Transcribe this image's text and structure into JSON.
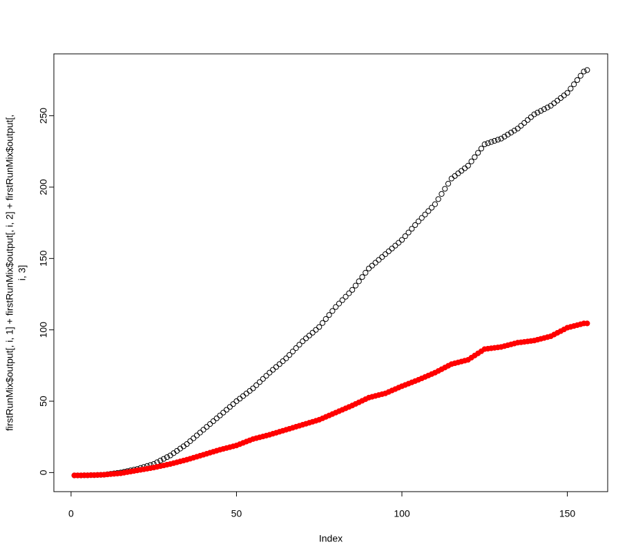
{
  "chart_data": {
    "type": "scatter",
    "x_label": "Index",
    "y_label": [
      "firstRunMix$output[, i, 1] + firstRunMix$output[, i, 2] + firstRunMix$output[,",
      "i, 3]"
    ],
    "x": [
      1,
      2,
      3,
      4,
      5,
      6,
      7,
      8,
      9,
      10,
      11,
      12,
      13,
      14,
      15,
      16,
      17,
      18,
      19,
      20,
      21,
      22,
      23,
      24,
      25,
      26,
      27,
      28,
      29,
      30,
      31,
      32,
      33,
      34,
      35,
      36,
      37,
      38,
      39,
      40,
      41,
      42,
      43,
      44,
      45,
      46,
      47,
      48,
      49,
      50,
      51,
      52,
      53,
      54,
      55,
      56,
      57,
      58,
      59,
      60,
      61,
      62,
      63,
      64,
      65,
      66,
      67,
      68,
      69,
      70,
      71,
      72,
      73,
      74,
      75,
      76,
      77,
      78,
      79,
      80,
      81,
      82,
      83,
      84,
      85,
      86,
      87,
      88,
      89,
      90,
      91,
      92,
      93,
      94,
      95,
      96,
      97,
      98,
      99,
      100,
      101,
      102,
      103,
      104,
      105,
      106,
      107,
      108,
      109,
      110,
      111,
      112,
      113,
      114,
      115,
      116,
      117,
      118,
      119,
      120,
      121,
      122,
      123,
      124,
      125,
      126,
      127,
      128,
      129,
      130,
      131,
      132,
      133,
      134,
      135,
      136,
      137,
      138,
      139,
      140,
      141,
      142,
      143,
      144,
      145,
      146,
      147,
      148,
      149,
      150,
      151,
      152,
      153,
      154,
      155,
      156
    ],
    "series": [
      {
        "color": "#000000",
        "filled": false,
        "values": [
          -2,
          -2,
          -2,
          -1.9,
          -1.9,
          -1.8,
          -1.8,
          -1.7,
          -1.6,
          -1.5,
          -1.2,
          -0.9,
          -0.6,
          -0.3,
          0,
          0.5,
          1,
          1.5,
          2,
          2.5,
          3.2,
          3.9,
          4.6,
          5.3,
          6,
          7.2,
          8.4,
          9.6,
          10.8,
          12,
          13.6,
          15.2,
          16.8,
          18.4,
          20,
          22,
          24,
          26,
          28,
          30,
          32,
          34,
          36,
          38,
          40,
          42,
          44,
          46,
          48,
          50,
          51.8,
          53.6,
          55.4,
          57.2,
          59,
          61.2,
          63.4,
          65.6,
          67.8,
          70,
          72,
          74,
          76,
          78,
          80,
          82.4,
          84.8,
          87.2,
          89.6,
          92,
          94,
          96,
          98,
          100,
          102,
          104.8,
          107.6,
          110.4,
          113.2,
          116,
          118.4,
          120.8,
          123.2,
          125.6,
          128,
          131,
          134,
          137,
          140,
          143,
          145,
          147,
          149,
          151,
          153,
          155,
          157,
          159,
          161,
          163,
          165.6,
          168.2,
          170.8,
          173.4,
          176,
          178.4,
          180.8,
          183.2,
          185.6,
          188,
          191.6,
          195.2,
          198.8,
          202.4,
          206,
          207.8,
          209.6,
          211.4,
          213.2,
          215,
          218,
          221,
          224,
          227,
          230,
          230.8,
          231.6,
          232.4,
          233.2,
          234,
          235.4,
          236.8,
          238.2,
          239.6,
          241,
          243,
          245,
          247,
          249,
          251,
          252.2,
          253.4,
          254.6,
          255.8,
          257,
          258.8,
          260.6,
          262.4,
          264.2,
          266,
          269,
          272,
          275,
          278,
          281,
          282
        ]
      },
      {
        "color": "#ff0000",
        "filled": true,
        "values": [
          -2,
          -2,
          -2,
          -1.9,
          -1.9,
          -1.8,
          -1.8,
          -1.7,
          -1.6,
          -1.5,
          -1.3,
          -1.1,
          -0.9,
          -0.7,
          -0.5,
          -0.1,
          0.3,
          0.7,
          1.1,
          1.5,
          1.9,
          2.3,
          2.7,
          3.1,
          3.5,
          4,
          4.5,
          5,
          5.5,
          6,
          6.6,
          7.2,
          7.8,
          8.4,
          9,
          9.7,
          10.4,
          11.1,
          11.8,
          12.5,
          13.2,
          13.9,
          14.6,
          15.3,
          16,
          16.6,
          17.2,
          17.8,
          18.4,
          19,
          19.9,
          20.8,
          21.7,
          22.6,
          23.5,
          24.1,
          24.7,
          25.3,
          25.9,
          26.5,
          27.2,
          27.9,
          28.6,
          29.3,
          30,
          30.7,
          31.4,
          32.1,
          32.8,
          33.5,
          34.2,
          34.9,
          35.6,
          36.3,
          37,
          38,
          39,
          40,
          41,
          42,
          43,
          44,
          45,
          46,
          47,
          48.1,
          49.2,
          50.3,
          51.4,
          52.5,
          53.1,
          53.7,
          54.3,
          54.9,
          55.5,
          56.5,
          57.5,
          58.5,
          59.5,
          60.5,
          61.4,
          62.3,
          63.2,
          64.1,
          65,
          66,
          67,
          68,
          69,
          70,
          71.2,
          72.4,
          73.6,
          74.8,
          76,
          76.6,
          77.2,
          77.8,
          78.4,
          79,
          80.5,
          82,
          83.5,
          85,
          86.5,
          86.8,
          87.1,
          87.4,
          87.7,
          88,
          88.6,
          89.2,
          89.8,
          90.4,
          91,
          91.3,
          91.6,
          91.9,
          92.2,
          92.5,
          93.1,
          93.7,
          94.3,
          94.9,
          95.5,
          96.7,
          97.9,
          99.1,
          100.3,
          101.5,
          102.1,
          102.7,
          103.3,
          103.9,
          104.5,
          104.5
        ]
      }
    ],
    "xlim": [
      -5.2,
      162.2
    ],
    "ylim": [
      -13.36,
      293.36
    ],
    "xticks": [
      0,
      50,
      100,
      150
    ],
    "yticks": [
      0,
      50,
      100,
      150,
      200,
      250
    ]
  }
}
